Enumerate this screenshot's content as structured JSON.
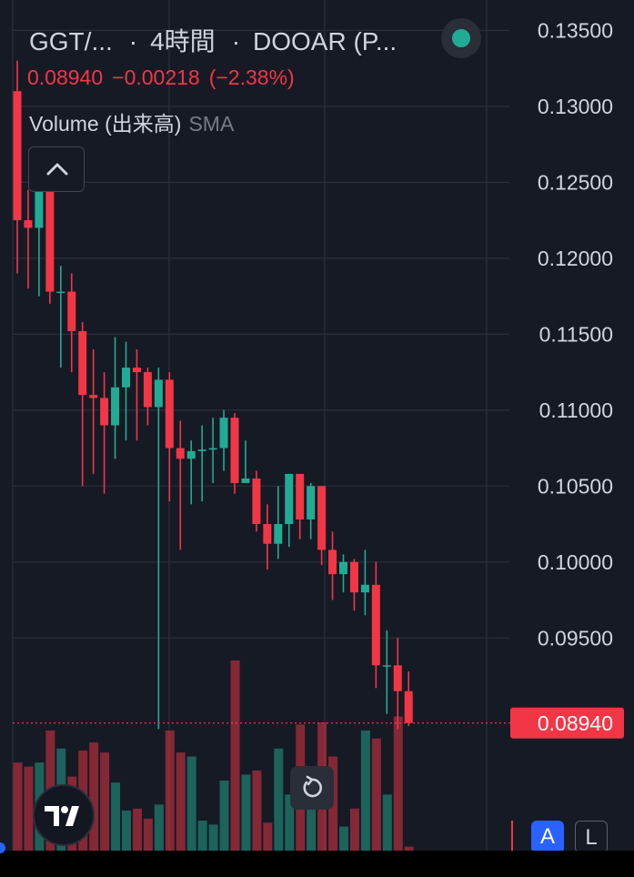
{
  "header": {
    "symbol": "GGT/...",
    "interval": "4時間",
    "exchange": "DOOAR (P...",
    "last": "0.08940",
    "change": "−0.00218",
    "change_pct": "(−2.38%)",
    "volume_label": "Volume (出来高)",
    "volume_ma": "SMA"
  },
  "colors": {
    "up": "#22ab94",
    "down": "#f23645",
    "background": "#161a25",
    "grid": "#2a2e39",
    "text": "#d1d4dc",
    "status": "#22ab94"
  },
  "icons": {
    "status": "status-dot-icon",
    "collapse": "chevron-up-icon",
    "reset": "reset-chart-icon",
    "logo": "tradingview-logo-icon"
  },
  "chart_data": {
    "type": "candlestick",
    "y_axis": {
      "ticks": [
        "0.13500",
        "0.13000",
        "0.12500",
        "0.12000",
        "0.11500",
        "0.11000",
        "0.10500",
        "0.10000",
        "0.09500"
      ],
      "min": 0.081,
      "max": 0.137,
      "position": "right"
    },
    "last_price_label": "0.08940",
    "last_price": 0.0894,
    "grid": true,
    "scale_buttons": [
      "A",
      "L"
    ],
    "candles": [
      {
        "o": 0.131,
        "h": 0.133,
        "l": 0.119,
        "c": 0.1225
      },
      {
        "o": 0.1225,
        "h": 0.1245,
        "l": 0.118,
        "c": 0.122
      },
      {
        "o": 0.122,
        "h": 0.1258,
        "l": 0.1175,
        "c": 0.1255
      },
      {
        "o": 0.1255,
        "h": 0.1258,
        "l": 0.117,
        "c": 0.1178
      },
      {
        "o": 0.1178,
        "h": 0.1195,
        "l": 0.1128,
        "c": 0.1178
      },
      {
        "o": 0.1178,
        "h": 0.119,
        "l": 0.1125,
        "c": 0.1152
      },
      {
        "o": 0.1152,
        "h": 0.1158,
        "l": 0.105,
        "c": 0.111
      },
      {
        "o": 0.111,
        "h": 0.114,
        "l": 0.1058,
        "c": 0.1108
      },
      {
        "o": 0.1108,
        "h": 0.1125,
        "l": 0.1045,
        "c": 0.109
      },
      {
        "o": 0.109,
        "h": 0.1148,
        "l": 0.1068,
        "c": 0.1115
      },
      {
        "o": 0.1115,
        "h": 0.1145,
        "l": 0.108,
        "c": 0.1128
      },
      {
        "o": 0.1128,
        "h": 0.114,
        "l": 0.108,
        "c": 0.1125
      },
      {
        "o": 0.1125,
        "h": 0.1128,
        "l": 0.109,
        "c": 0.1102
      },
      {
        "o": 0.1102,
        "h": 0.1128,
        "l": 0.089,
        "c": 0.112
      },
      {
        "o": 0.112,
        "h": 0.1125,
        "l": 0.104,
        "c": 0.1075
      },
      {
        "o": 0.1075,
        "h": 0.1093,
        "l": 0.1008,
        "c": 0.1068
      },
      {
        "o": 0.1068,
        "h": 0.108,
        "l": 0.1038,
        "c": 0.1073
      },
      {
        "o": 0.1073,
        "h": 0.109,
        "l": 0.104,
        "c": 0.1074
      },
      {
        "o": 0.1074,
        "h": 0.1095,
        "l": 0.1052,
        "c": 0.1075
      },
      {
        "o": 0.1075,
        "h": 0.11,
        "l": 0.106,
        "c": 0.1095
      },
      {
        "o": 0.1095,
        "h": 0.1098,
        "l": 0.1045,
        "c": 0.1052
      },
      {
        "o": 0.1052,
        "h": 0.108,
        "l": 0.1052,
        "c": 0.1055
      },
      {
        "o": 0.1055,
        "h": 0.106,
        "l": 0.102,
        "c": 0.1025
      },
      {
        "o": 0.1025,
        "h": 0.1038,
        "l": 0.0995,
        "c": 0.1012
      },
      {
        "o": 0.1012,
        "h": 0.105,
        "l": 0.1002,
        "c": 0.1025
      },
      {
        "o": 0.1025,
        "h": 0.1058,
        "l": 0.101,
        "c": 0.1058
      },
      {
        "o": 0.1058,
        "h": 0.1058,
        "l": 0.1015,
        "c": 0.1028
      },
      {
        "o": 0.1028,
        "h": 0.1052,
        "l": 0.1015,
        "c": 0.105
      },
      {
        "o": 0.105,
        "h": 0.105,
        "l": 0.0998,
        "c": 0.1008
      },
      {
        "o": 0.1008,
        "h": 0.102,
        "l": 0.0975,
        "c": 0.0992
      },
      {
        "o": 0.0992,
        "h": 0.1005,
        "l": 0.098,
        "c": 0.1
      },
      {
        "o": 0.1,
        "h": 0.1002,
        "l": 0.0968,
        "c": 0.098
      },
      {
        "o": 0.098,
        "h": 0.1008,
        "l": 0.0965,
        "c": 0.0985
      },
      {
        "o": 0.0985,
        "h": 0.1,
        "l": 0.0917,
        "c": 0.0932
      },
      {
        "o": 0.0932,
        "h": 0.0955,
        "l": 0.09,
        "c": 0.0932
      },
      {
        "o": 0.0932,
        "h": 0.095,
        "l": 0.089,
        "c": 0.0915
      },
      {
        "o": 0.0915,
        "h": 0.0928,
        "l": 0.0892,
        "c": 0.0894
      }
    ],
    "volumes": [
      0.44,
      0.42,
      0.44,
      0.6,
      0.51,
      0.37,
      0.5,
      0.54,
      0.49,
      0.34,
      0.2,
      0.21,
      0.16,
      0.23,
      0.6,
      0.49,
      0.47,
      0.15,
      0.13,
      0.35,
      0.95,
      0.38,
      0.4,
      0.14,
      0.51,
      0.28,
      0.63,
      0.22,
      0.64,
      0.47,
      0.12,
      0.21,
      0.6,
      0.56,
      0.28,
      0.67,
      0.02
    ]
  }
}
